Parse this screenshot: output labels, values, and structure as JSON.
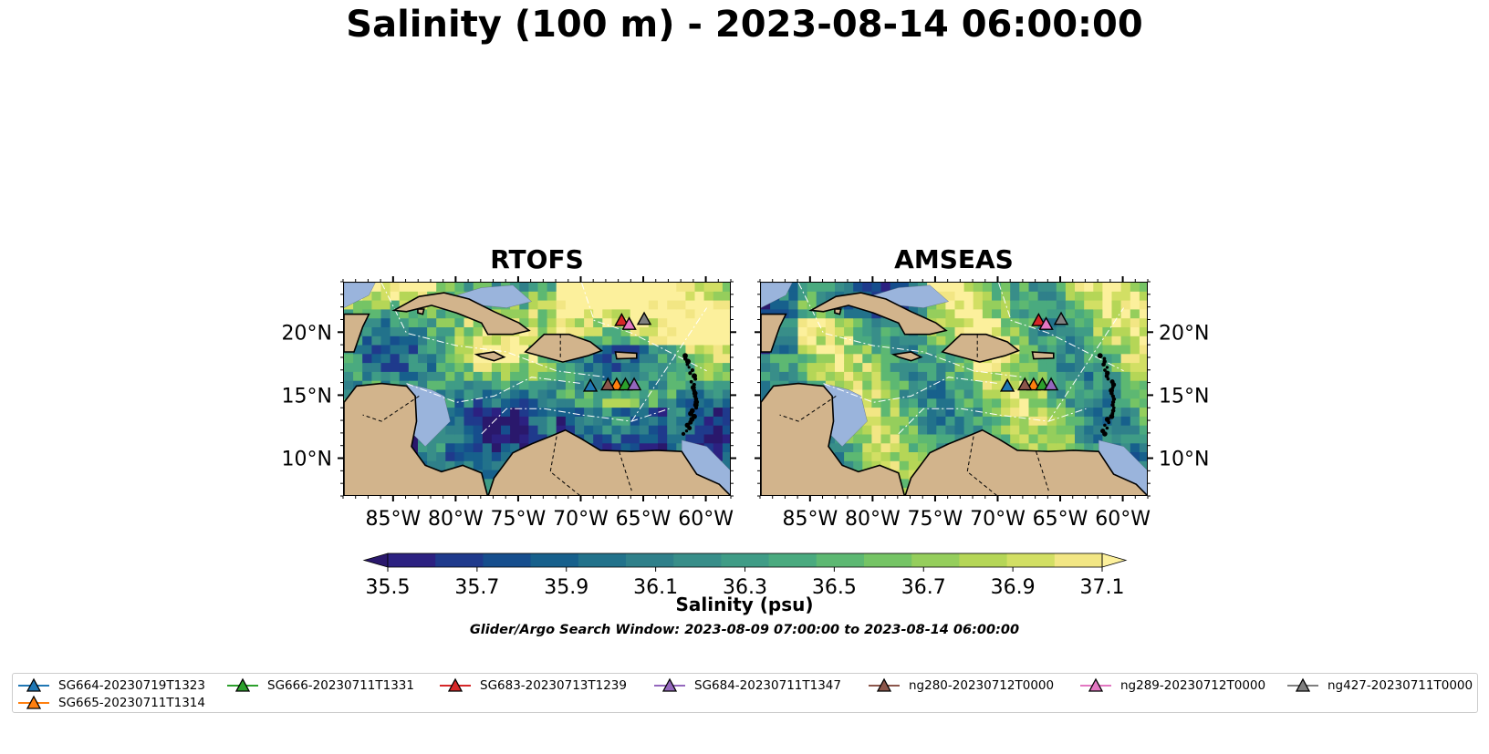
{
  "figure": {
    "title": "Salinity (100 m) - 2023-08-14 06:00:00",
    "search_window": "Glider/Argo Search Window: 2023-08-09 07:00:00 to 2023-08-14 06:00:00"
  },
  "panels": [
    {
      "title": "RTOFS",
      "model": "rtofs"
    },
    {
      "title": "AMSEAS",
      "model": "amseas"
    }
  ],
  "axes": {
    "lon_labels": [
      "85°W",
      "80°W",
      "75°W",
      "70°W",
      "65°W",
      "60°W"
    ],
    "lon_values": [
      -85,
      -80,
      -75,
      -70,
      -65,
      -60
    ],
    "lat_labels": [
      "20°N",
      "15°N",
      "10°N"
    ],
    "lat_values": [
      20,
      15,
      10
    ],
    "lon_range": [
      -89,
      -58
    ],
    "lat_range": [
      7,
      24
    ]
  },
  "colorbar": {
    "label": "Salinity (psu)",
    "ticks": [
      "35.5",
      "35.7",
      "35.9",
      "36.1",
      "36.3",
      "36.5",
      "36.7",
      "36.9",
      "37.1"
    ],
    "min": 35.4,
    "max": 37.2,
    "step": 0.1,
    "extend": "both",
    "colormap": "haline",
    "colors": [
      "#2a186c",
      "#2c2181",
      "#1f3a8c",
      "#164e8d",
      "#17608c",
      "#22728b",
      "#2f808a",
      "#388e89",
      "#3f9c86",
      "#4aaa7f",
      "#5db872",
      "#75c465",
      "#95ce5c",
      "#b5d657",
      "#d2df64",
      "#f2e684",
      "#fcf09c"
    ]
  },
  "land_color": "#d2b48c",
  "ocean_shallow_color": "#9ab4dc",
  "gliders": [
    {
      "name": "SG664-20230719T1323",
      "color": "#1f77b4",
      "lon": -69.3,
      "lat": 15.8
    },
    {
      "name": "SG665-20230711T1314",
      "color": "#ff7f0e",
      "lon": -67.2,
      "lat": 15.9
    },
    {
      "name": "SG666-20230711T1331",
      "color": "#2ca02c",
      "lon": -66.5,
      "lat": 15.9
    },
    {
      "name": "SG683-20230713T1239",
      "color": "#d62728",
      "lon": -66.8,
      "lat": 21.0
    },
    {
      "name": "SG684-20230711T1347",
      "color": "#9467bd",
      "lon": -65.8,
      "lat": 15.9
    },
    {
      "name": "ng280-20230712T0000",
      "color": "#8c564b",
      "lon": -67.9,
      "lat": 15.9
    },
    {
      "name": "ng289-20230712T0000",
      "color": "#e377c2",
      "lon": -66.2,
      "lat": 20.7
    },
    {
      "name": "ng427-20230711T0000",
      "color": "#7f7f7f",
      "lon": -65.0,
      "lat": 21.1
    }
  ]
}
